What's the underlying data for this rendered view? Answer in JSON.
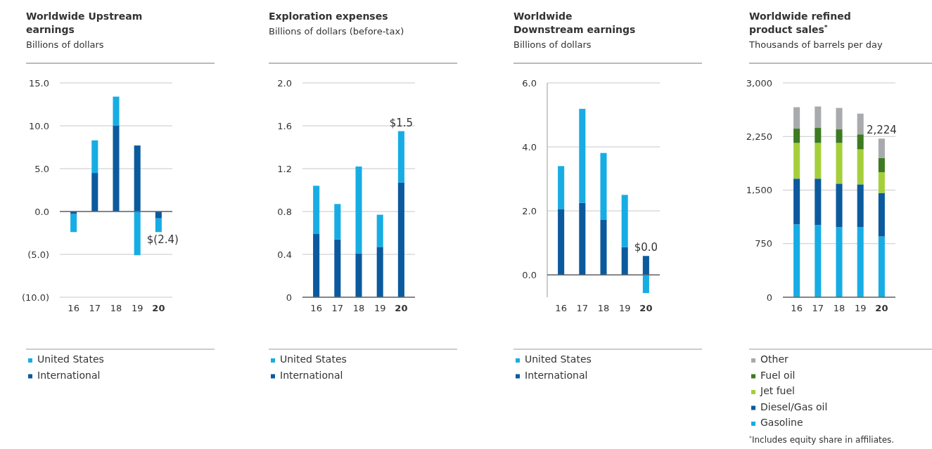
{
  "chart_data": [
    {
      "type": "bar",
      "title": "Worldwide Upstream earnings",
      "subtitle": "Billions of dollars",
      "categories": [
        "16",
        "17",
        "18",
        "19",
        "20"
      ],
      "stacked": true,
      "legend": "bottom",
      "grid": "y",
      "series": [
        {
          "name": "International",
          "color": "#0b5a9e",
          "values": [
            -0.3,
            4.5,
            10.0,
            7.7,
            -0.8
          ]
        },
        {
          "name": "United States",
          "color": "#17ade4",
          "values": [
            -2.1,
            3.8,
            3.4,
            -5.1,
            -1.6
          ]
        }
      ],
      "ylim": [
        -10,
        15
      ],
      "yticks": [
        {
          "value": 15,
          "label": "15.0"
        },
        {
          "value": 10,
          "label": "10.0"
        },
        {
          "value": 5,
          "label": "5.0"
        },
        {
          "value": 0,
          "label": "0.0"
        },
        {
          "value": -5,
          "label": "(5.0)"
        },
        {
          "value": -10,
          "label": "(10.0)"
        }
      ],
      "annotations": [
        {
          "text": "$(2.4)",
          "x": "20",
          "y": -2.4
        }
      ]
    },
    {
      "type": "bar",
      "title": "Exploration expenses",
      "subtitle": "Billions of dollars (before-tax)",
      "categories": [
        "16",
        "17",
        "18",
        "19",
        "20"
      ],
      "stacked": true,
      "legend": "bottom",
      "grid": "y",
      "series": [
        {
          "name": "International",
          "color": "#0b5a9e",
          "values": [
            0.59,
            0.54,
            0.41,
            0.47,
            1.07
          ]
        },
        {
          "name": "United States",
          "color": "#17ade4",
          "values": [
            0.45,
            0.33,
            0.81,
            0.3,
            0.48
          ]
        }
      ],
      "ylim": [
        0,
        2
      ],
      "yticks": [
        {
          "value": 2,
          "label": "2.0"
        },
        1.6,
        1.2,
        0.8,
        0.4,
        0
      ],
      "annotations": [
        {
          "text": "$1.5",
          "x": "20",
          "y": 1.55
        }
      ]
    },
    {
      "type": "bar",
      "title": "Worldwide Downstream earnings",
      "subtitle": "Billions of dollars",
      "categories": [
        "16",
        "17",
        "18",
        "19",
        "20"
      ],
      "stacked": true,
      "legend": "bottom",
      "grid": "y",
      "series": [
        {
          "name": "International",
          "color": "#0b5a9e",
          "values": [
            2.06,
            2.25,
            1.73,
            0.87,
            0.59
          ]
        },
        {
          "name": "United States",
          "color": "#17ade4",
          "values": [
            1.34,
            2.94,
            2.08,
            1.63,
            -0.57
          ]
        }
      ],
      "ylim": [
        -0.7,
        6
      ],
      "yticks": [
        {
          "value": 6,
          "label": "6.0"
        },
        {
          "value": 4,
          "label": "4.0"
        },
        {
          "value": 2,
          "label": "2.0"
        },
        {
          "value": 0,
          "label": "0.0"
        }
      ],
      "annotations": [
        {
          "text": "$0.0",
          "x": "20",
          "y": 0.02
        }
      ]
    },
    {
      "type": "bar",
      "title": "Worldwide refined product sales$^{*}$",
      "subtitle": "Thousands of barrels per day",
      "categories": [
        "16",
        "17",
        "18",
        "19",
        "20"
      ],
      "stacked": true,
      "legend": "bottom",
      "grid": "y",
      "series": [
        {
          "name": "Gasoline",
          "color": "#17ade4",
          "values": [
            1020,
            1010,
            980,
            980,
            850
          ]
        },
        {
          "name": "Diesel/Gas oil",
          "color": "#0b5a9e",
          "values": [
            640,
            650,
            610,
            600,
            610
          ]
        },
        {
          "name": "Jet fuel",
          "color": "#a5cf3a",
          "values": [
            500,
            500,
            570,
            490,
            290
          ]
        },
        {
          "name": "Fuel oil",
          "color": "#3d7a22",
          "values": [
            200,
            210,
            190,
            210,
            200
          ]
        },
        {
          "name": "Other",
          "color": "#a8aaad",
          "values": [
            300,
            300,
            300,
            290,
            270
          ]
        }
      ],
      "ylim": [
        0,
        3000
      ],
      "yticks": [
        {
          "value": 3000,
          "label": "3,000"
        },
        {
          "value": 2250,
          "label": "2,250"
        },
        {
          "value": 1500,
          "label": "1,500"
        },
        750,
        0
      ],
      "annotations": [
        {
          "text": "2,224",
          "x": "20",
          "y": 2224
        },
        "$^{*}$Includes equity share in affiliates."
      ]
    }
  ]
}
